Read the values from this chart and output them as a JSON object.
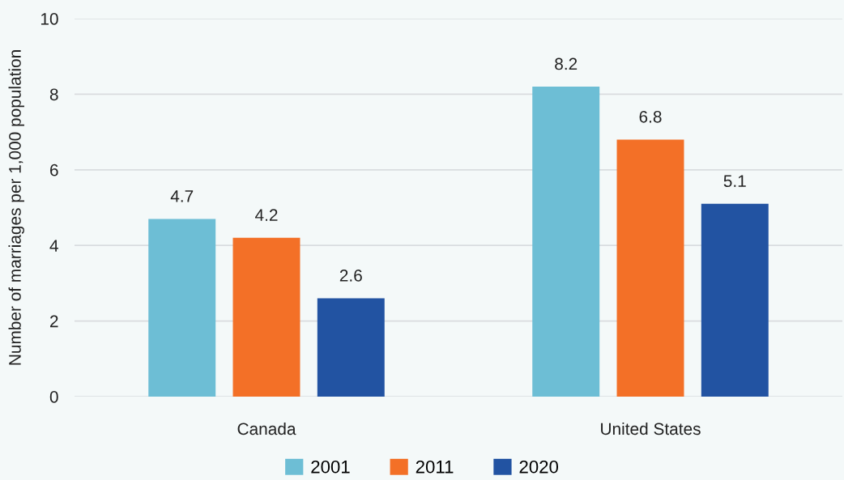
{
  "chart_data": {
    "type": "bar",
    "ylabel": "Number of marriages per 1,000 population",
    "categories": [
      "Canada",
      "United States"
    ],
    "series": [
      {
        "name": "2001",
        "color": "#6dbed5",
        "values": [
          4.7,
          8.2
        ]
      },
      {
        "name": "2011",
        "color": "#f37027",
        "values": [
          4.2,
          6.8
        ]
      },
      {
        "name": "2020",
        "color": "#2253a2",
        "values": [
          2.6,
          5.1
        ]
      }
    ],
    "ylim": [
      0,
      10
    ],
    "yticks": [
      0,
      2,
      4,
      6,
      8,
      10
    ],
    "grid": "y",
    "legend": "bottom",
    "data_labels": true
  }
}
